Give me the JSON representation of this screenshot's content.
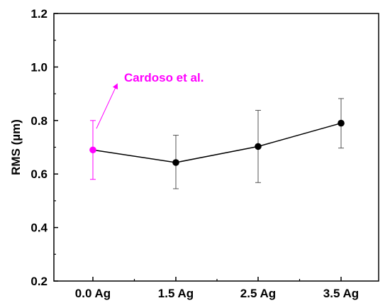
{
  "chart_data": {
    "type": "line",
    "title": "",
    "xlabel": "",
    "ylabel": "RMS (µm)",
    "ylim": [
      0.2,
      1.2
    ],
    "yticks": [
      0.2,
      0.4,
      0.6,
      0.8,
      1.0,
      1.2
    ],
    "ytick_labels": [
      "0.2",
      "0.4",
      "0.6",
      "0.8",
      "1.0",
      "1.2"
    ],
    "categories": [
      "0.0 Ag",
      "1.5 Ag",
      "2.5 Ag",
      "3.5 Ag"
    ],
    "grid": false,
    "series": [
      {
        "name": "",
        "color": "#000000",
        "points": [
          {
            "category": "1.5 Ag",
            "value": 0.643,
            "err_low": 0.545,
            "err_high": 0.745
          },
          {
            "category": "2.5 Ag",
            "value": 0.703,
            "err_low": 0.568,
            "err_high": 0.838
          },
          {
            "category": "3.5 Ag",
            "value": 0.79,
            "err_low": 0.697,
            "err_high": 0.882
          }
        ]
      },
      {
        "name": "",
        "color": "#ff00ff",
        "connect_to_next_series": true,
        "points": [
          {
            "category": "0.0 Ag",
            "value": 0.69,
            "err_low": 0.58,
            "err_high": 0.8
          }
        ]
      }
    ],
    "annotation": {
      "text": "Cardoso et al.",
      "color": "#ff00ff",
      "points_to": "0.0 Ag"
    }
  }
}
